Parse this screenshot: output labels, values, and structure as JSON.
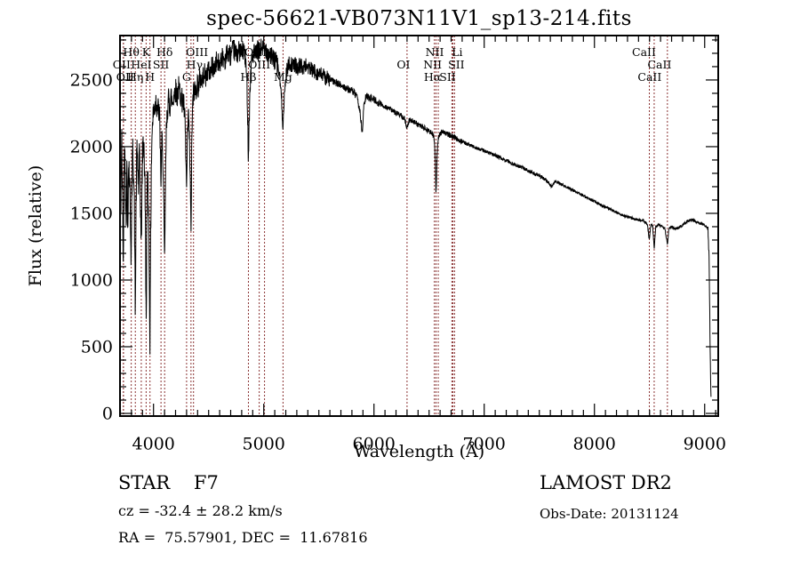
{
  "title": "spec-56621-VB073N11V1_sp13-214.fits",
  "axes": {
    "xlabel": "Wavelength (Å)",
    "ylabel": "Flux (relative)"
  },
  "footer": {
    "star_class": "STAR    F7",
    "cz": "cz = -32.4 ± 28.2 km/s",
    "radec": "RA =  75.57901, DEC =  11.67816",
    "survey": "LAMOST DR2",
    "obs_date": "Obs-Date: 20131124"
  },
  "chart_data": {
    "type": "line",
    "title": "spec-56621-VB073N11V1_sp13-214.fits",
    "xlabel": "Wavelength (Å)",
    "ylabel": "Flux (relative)",
    "xlim": [
      3696,
      9123
    ],
    "ylim": [
      -20,
      2833
    ],
    "x_major_ticks": [
      4000,
      5000,
      6000,
      7000,
      8000,
      9000
    ],
    "y_major_ticks": [
      0,
      500,
      1000,
      1500,
      2000,
      2500
    ],
    "x_minor_step": 100,
    "y_minor_step": 100,
    "grid": false,
    "legend": "none",
    "line_color": "#000000",
    "marker_line_color": "#8b3434",
    "spectral_lines": [
      {
        "label": "Hθ",
        "wavelength": 3798,
        "row": 1,
        "dx": 0
      },
      {
        "label": "K",
        "wavelength": 3933,
        "row": 1,
        "dx": 0
      },
      {
        "label": "Hδ",
        "wavelength": 4101,
        "row": 1,
        "dx": 0
      },
      {
        "label": "OIII",
        "wavelength": 4363,
        "row": 1,
        "dx": 4
      },
      {
        "label": "OIII",
        "wavelength": 5007,
        "row": 1,
        "dx": -10
      },
      {
        "label": "NII",
        "wavelength": 6583,
        "row": 1,
        "dx": -4
      },
      {
        "label": "Li",
        "wavelength": 6707,
        "row": 1,
        "dx": 6
      },
      {
        "label": "CaII",
        "wavelength": 8498,
        "row": 1,
        "dx": -6
      },
      {
        "label": "OII",
        "wavelength": 3727,
        "row": 2,
        "dx": -2
      },
      {
        "label": "HeI",
        "wavelength": 3889,
        "row": 2,
        "dx": 0
      },
      {
        "label": "SII",
        "wavelength": 4068,
        "row": 2,
        "dx": 0
      },
      {
        "label": "Hγ",
        "wavelength": 4340,
        "row": 2,
        "dx": 4
      },
      {
        "label": "OIII",
        "wavelength": 4959,
        "row": 2,
        "dx": 0
      },
      {
        "label": "OI",
        "wavelength": 6300,
        "row": 2,
        "dx": -4
      },
      {
        "label": "NII",
        "wavelength": 6548,
        "row": 2,
        "dx": -2
      },
      {
        "label": "SII",
        "wavelength": 6731,
        "row": 2,
        "dx": 2
      },
      {
        "label": "CaII",
        "wavelength": 8542,
        "row": 2,
        "dx": 6
      },
      {
        "label": "OII",
        "wavelength": 3727,
        "row": 3,
        "dx": 2
      },
      {
        "label": "Hη",
        "wavelength": 3835,
        "row": 3,
        "dx": 0
      },
      {
        "label": "H",
        "wavelength": 3968,
        "row": 3,
        "dx": 0
      },
      {
        "label": "G",
        "wavelength": 4300,
        "row": 3,
        "dx": 0
      },
      {
        "label": "Hβ",
        "wavelength": 4861,
        "row": 3,
        "dx": 0
      },
      {
        "label": "Mg",
        "wavelength": 5175,
        "row": 3,
        "dx": 0
      },
      {
        "label": "Hα",
        "wavelength": 6563,
        "row": 3,
        "dx": -4
      },
      {
        "label": "SII",
        "wavelength": 6716,
        "row": 3,
        "dx": -6
      },
      {
        "label": "CaII",
        "wavelength": 8662,
        "row": 3,
        "dx": -20
      }
    ],
    "spectrum_points": [
      [
        3696,
        60
      ],
      [
        3698,
        700
      ],
      [
        3700,
        1380
      ],
      [
        3704,
        1600
      ],
      [
        3708,
        1900
      ],
      [
        3712,
        2030
      ],
      [
        3716,
        1750
      ],
      [
        3720,
        1550
      ],
      [
        3724,
        1250
      ],
      [
        3727,
        1080
      ],
      [
        3731,
        1600
      ],
      [
        3736,
        1900
      ],
      [
        3742,
        1980
      ],
      [
        3748,
        1600
      ],
      [
        3752,
        1400
      ],
      [
        3756,
        1750
      ],
      [
        3760,
        1850
      ],
      [
        3765,
        1350
      ],
      [
        3770,
        1650
      ],
      [
        3776,
        1900
      ],
      [
        3782,
        1750
      ],
      [
        3788,
        1600
      ],
      [
        3793,
        1350
      ],
      [
        3798,
        1150
      ],
      [
        3803,
        1600
      ],
      [
        3808,
        1850
      ],
      [
        3814,
        1980
      ],
      [
        3820,
        1800
      ],
      [
        3826,
        1550
      ],
      [
        3831,
        1100
      ],
      [
        3835,
        700
      ],
      [
        3840,
        1400
      ],
      [
        3846,
        1850
      ],
      [
        3852,
        1980
      ],
      [
        3858,
        1800
      ],
      [
        3864,
        1700
      ],
      [
        3870,
        1930
      ],
      [
        3876,
        1800
      ],
      [
        3882,
        1580
      ],
      [
        3889,
        1200
      ],
      [
        3895,
        1700
      ],
      [
        3901,
        1950
      ],
      [
        3908,
        2050
      ],
      [
        3915,
        1980
      ],
      [
        3922,
        1700
      ],
      [
        3928,
        1300
      ],
      [
        3933,
        620
      ],
      [
        3938,
        1250
      ],
      [
        3944,
        1700
      ],
      [
        3950,
        1820
      ],
      [
        3956,
        1500
      ],
      [
        3962,
        1050
      ],
      [
        3968,
        520
      ],
      [
        3974,
        1300
      ],
      [
        3980,
        1850
      ],
      [
        3986,
        2100
      ],
      [
        3994,
        2200
      ],
      [
        4002,
        2300
      ],
      [
        4012,
        2280
      ],
      [
        4022,
        2350
      ],
      [
        4032,
        2300
      ],
      [
        4044,
        2280
      ],
      [
        4056,
        2220
      ],
      [
        4068,
        1720
      ],
      [
        4076,
        2050
      ],
      [
        4084,
        1950
      ],
      [
        4092,
        1600
      ],
      [
        4101,
        1080
      ],
      [
        4108,
        1700
      ],
      [
        4116,
        2100
      ],
      [
        4126,
        2280
      ],
      [
        4136,
        2350
      ],
      [
        4148,
        2300
      ],
      [
        4160,
        2380
      ],
      [
        4172,
        2320
      ],
      [
        4186,
        2400
      ],
      [
        4200,
        2430
      ],
      [
        4214,
        2380
      ],
      [
        4228,
        2440
      ],
      [
        4244,
        2400
      ],
      [
        4258,
        2350
      ],
      [
        4272,
        2330
      ],
      [
        4286,
        2180
      ],
      [
        4300,
        1660
      ],
      [
        4308,
        2050
      ],
      [
        4316,
        2250
      ],
      [
        4326,
        2050
      ],
      [
        4333,
        1750
      ],
      [
        4340,
        1330
      ],
      [
        4348,
        2100
      ],
      [
        4358,
        2350
      ],
      [
        4368,
        2430
      ],
      [
        4380,
        2400
      ],
      [
        4395,
        2480
      ],
      [
        4410,
        2450
      ],
      [
        4425,
        2520
      ],
      [
        4440,
        2490
      ],
      [
        4458,
        2560
      ],
      [
        4476,
        2520
      ],
      [
        4494,
        2580
      ],
      [
        4512,
        2550
      ],
      [
        4530,
        2610
      ],
      [
        4550,
        2580
      ],
      [
        4572,
        2640
      ],
      [
        4596,
        2610
      ],
      [
        4620,
        2680
      ],
      [
        4646,
        2650
      ],
      [
        4672,
        2710
      ],
      [
        4700,
        2680
      ],
      [
        4726,
        2730
      ],
      [
        4752,
        2690
      ],
      [
        4778,
        2720
      ],
      [
        4800,
        2700
      ],
      [
        4820,
        2730
      ],
      [
        4838,
        2620
      ],
      [
        4850,
        2400
      ],
      [
        4861,
        1920
      ],
      [
        4872,
        2350
      ],
      [
        4884,
        2600
      ],
      [
        4896,
        2670
      ],
      [
        4910,
        2700
      ],
      [
        4926,
        2680
      ],
      [
        4944,
        2720
      ],
      [
        4962,
        2700
      ],
      [
        4980,
        2750
      ],
      [
        5000,
        2720
      ],
      [
        5020,
        2740
      ],
      [
        5040,
        2700
      ],
      [
        5060,
        2690
      ],
      [
        5080,
        2660
      ],
      [
        5100,
        2650
      ],
      [
        5120,
        2620
      ],
      [
        5140,
        2550
      ],
      [
        5158,
        2400
      ],
      [
        5175,
        2160
      ],
      [
        5190,
        2420
      ],
      [
        5205,
        2560
      ],
      [
        5222,
        2610
      ],
      [
        5240,
        2630
      ],
      [
        5260,
        2600
      ],
      [
        5282,
        2620
      ],
      [
        5306,
        2590
      ],
      [
        5330,
        2610
      ],
      [
        5356,
        2590
      ],
      [
        5382,
        2610
      ],
      [
        5410,
        2590
      ],
      [
        5440,
        2570
      ],
      [
        5470,
        2560
      ],
      [
        5500,
        2545
      ],
      [
        5535,
        2530
      ],
      [
        5570,
        2515
      ],
      [
        5605,
        2500
      ],
      [
        5640,
        2485
      ],
      [
        5675,
        2470
      ],
      [
        5710,
        2455
      ],
      [
        5745,
        2440
      ],
      [
        5780,
        2425
      ],
      [
        5815,
        2410
      ],
      [
        5845,
        2370
      ],
      [
        5875,
        2260
      ],
      [
        5893,
        2090
      ],
      [
        5908,
        2300
      ],
      [
        5925,
        2370
      ],
      [
        5945,
        2375
      ],
      [
        5970,
        2365
      ],
      [
        6000,
        2355
      ],
      [
        6035,
        2330
      ],
      [
        6070,
        2315
      ],
      [
        6105,
        2300
      ],
      [
        6140,
        2285
      ],
      [
        6175,
        2265
      ],
      [
        6210,
        2250
      ],
      [
        6245,
        2235
      ],
      [
        6275,
        2215
      ],
      [
        6300,
        2145
      ],
      [
        6320,
        2200
      ],
      [
        6350,
        2190
      ],
      [
        6385,
        2175
      ],
      [
        6420,
        2155
      ],
      [
        6455,
        2140
      ],
      [
        6490,
        2120
      ],
      [
        6520,
        2105
      ],
      [
        6545,
        2075
      ],
      [
        6556,
        1900
      ],
      [
        6563,
        1630
      ],
      [
        6572,
        1950
      ],
      [
        6583,
        2060
      ],
      [
        6600,
        2100
      ],
      [
        6625,
        2115
      ],
      [
        6655,
        2100
      ],
      [
        6690,
        2085
      ],
      [
        6725,
        2070
      ],
      [
        6760,
        2055
      ],
      [
        6800,
        2040
      ],
      [
        6845,
        2020
      ],
      [
        6890,
        2005
      ],
      [
        6935,
        1990
      ],
      [
        6980,
        1975
      ],
      [
        7025,
        1960
      ],
      [
        7070,
        1945
      ],
      [
        7115,
        1930
      ],
      [
        7160,
        1910
      ],
      [
        7205,
        1895
      ],
      [
        7250,
        1875
      ],
      [
        7295,
        1860
      ],
      [
        7340,
        1845
      ],
      [
        7385,
        1825
      ],
      [
        7430,
        1810
      ],
      [
        7475,
        1790
      ],
      [
        7520,
        1775
      ],
      [
        7560,
        1750
      ],
      [
        7595,
        1715
      ],
      [
        7615,
        1700
      ],
      [
        7640,
        1740
      ],
      [
        7680,
        1725
      ],
      [
        7720,
        1710
      ],
      [
        7760,
        1695
      ],
      [
        7800,
        1675
      ],
      [
        7840,
        1660
      ],
      [
        7880,
        1640
      ],
      [
        7920,
        1620
      ],
      [
        7960,
        1605
      ],
      [
        8000,
        1590
      ],
      [
        8045,
        1570
      ],
      [
        8090,
        1550
      ],
      [
        8135,
        1535
      ],
      [
        8180,
        1515
      ],
      [
        8225,
        1500
      ],
      [
        8270,
        1480
      ],
      [
        8315,
        1470
      ],
      [
        8360,
        1460
      ],
      [
        8405,
        1450
      ],
      [
        8445,
        1445
      ],
      [
        8480,
        1420
      ],
      [
        8498,
        1300
      ],
      [
        8512,
        1420
      ],
      [
        8528,
        1405
      ],
      [
        8542,
        1230
      ],
      [
        8556,
        1400
      ],
      [
        8580,
        1415
      ],
      [
        8610,
        1405
      ],
      [
        8640,
        1385
      ],
      [
        8662,
        1265
      ],
      [
        8676,
        1390
      ],
      [
        8700,
        1400
      ],
      [
        8730,
        1385
      ],
      [
        8760,
        1390
      ],
      [
        8790,
        1405
      ],
      [
        8820,
        1425
      ],
      [
        8850,
        1445
      ],
      [
        8880,
        1450
      ],
      [
        8910,
        1445
      ],
      [
        8940,
        1430
      ],
      [
        8965,
        1420
      ],
      [
        8990,
        1415
      ],
      [
        9010,
        1405
      ],
      [
        9030,
        1380
      ],
      [
        9040,
        1150
      ],
      [
        9048,
        600
      ],
      [
        9054,
        250
      ],
      [
        9058,
        150
      ]
    ],
    "noise_regions": [
      [
        3696,
        3990,
        140
      ],
      [
        3990,
        4440,
        95
      ],
      [
        4440,
        5140,
        80
      ],
      [
        5140,
        5600,
        60
      ],
      [
        5600,
        6100,
        28
      ],
      [
        6100,
        6800,
        20
      ],
      [
        6800,
        7600,
        14
      ],
      [
        7600,
        9030,
        10
      ],
      [
        9030,
        9060,
        30
      ]
    ],
    "noise_seed": 42
  }
}
